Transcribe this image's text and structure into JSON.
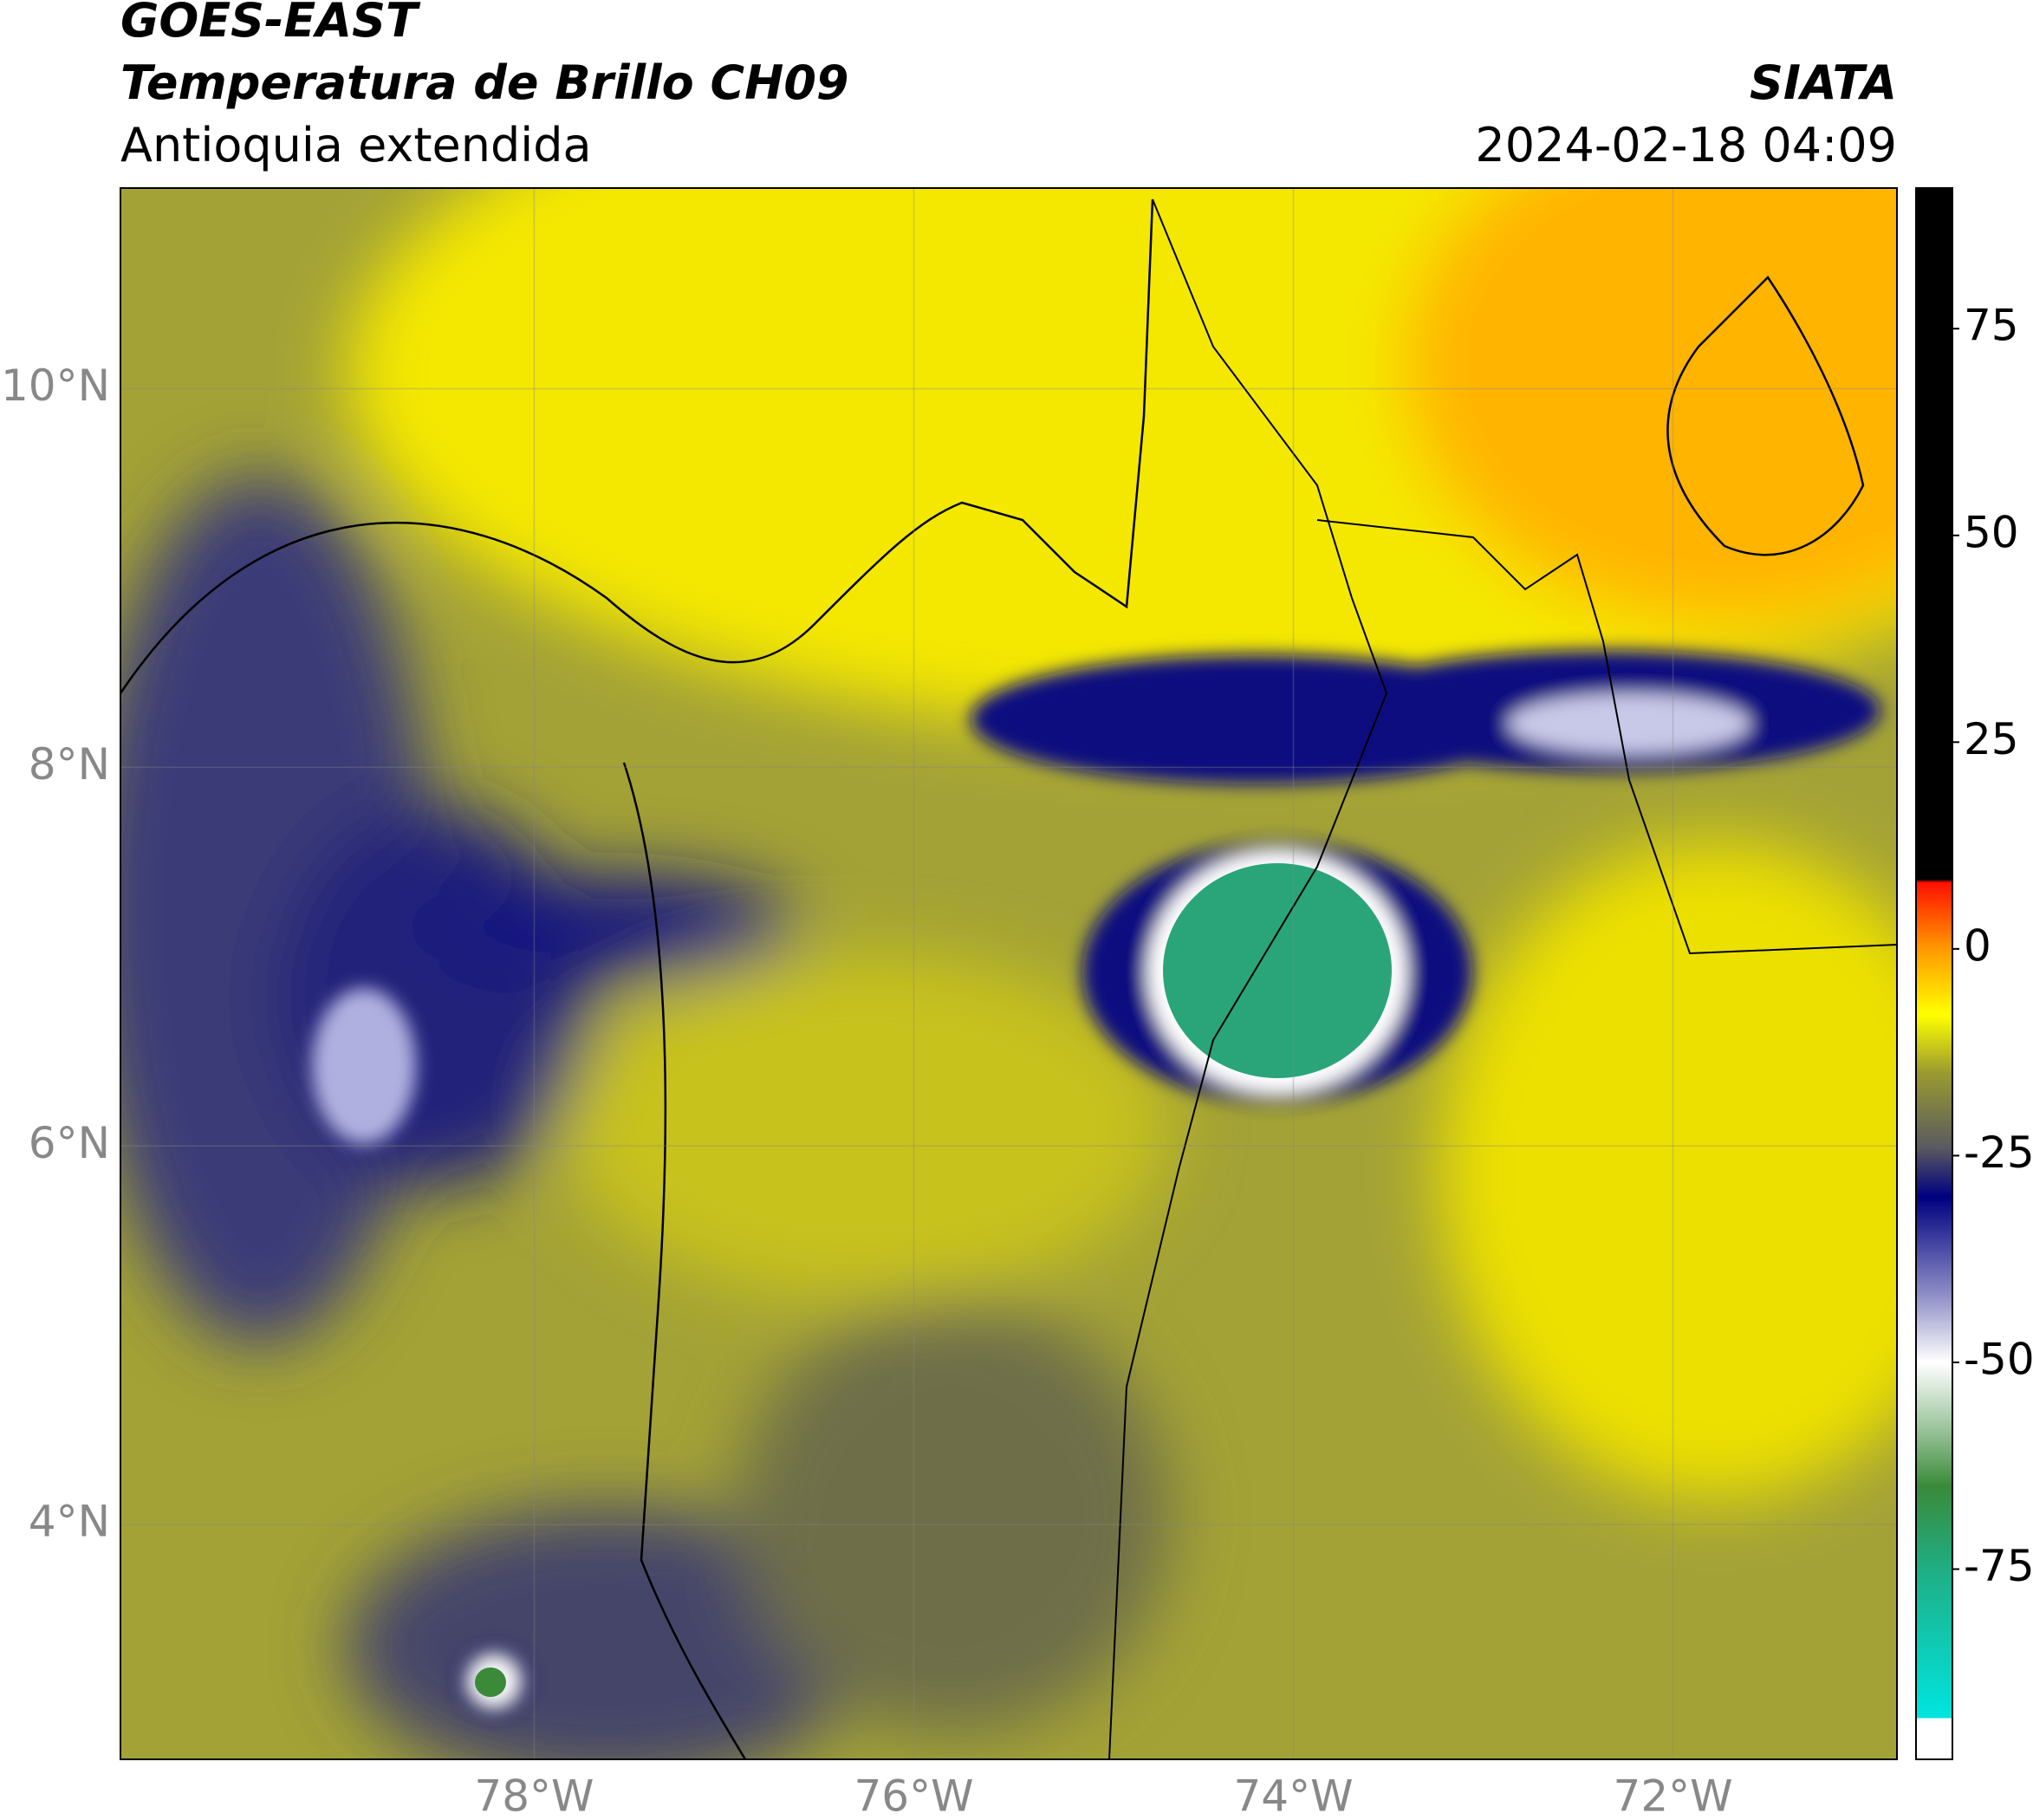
{
  "header": {
    "title": "GOES-EAST",
    "subtitle": "Temperatura de Brillo CH09",
    "region": "Antioquia extendida",
    "source": "SIATA",
    "datetime": "2024-02-18 04:09"
  },
  "map": {
    "lonlim": [
      -80.18,
      -70.82
    ],
    "latlim": [
      2.76,
      11.06
    ],
    "lonticks": [
      {
        "value": -78,
        "label": "78°W"
      },
      {
        "value": -76,
        "label": "76°W"
      },
      {
        "value": -74,
        "label": "74°W"
      },
      {
        "value": -72,
        "label": "72°W"
      }
    ],
    "latticks": [
      {
        "value": 4,
        "label": "4°N"
      },
      {
        "value": 6,
        "label": "6°N"
      },
      {
        "value": 8,
        "label": "8°N"
      },
      {
        "value": 10,
        "label": "10°N"
      }
    ],
    "grid": true
  },
  "colorbar": {
    "lim": [
      -98,
      92
    ],
    "ticks": [
      -75,
      -50,
      -25,
      0,
      25,
      50,
      75
    ],
    "stops": [
      {
        "value": -98,
        "color": "#ffffff"
      },
      {
        "value": -93,
        "color": "#ffffff"
      },
      {
        "value": -93,
        "color": "#00e5e0"
      },
      {
        "value": -75,
        "color": "#1fae84"
      },
      {
        "value": -65,
        "color": "#3a8a3a"
      },
      {
        "value": -58,
        "color": "#9cc49c"
      },
      {
        "value": -50,
        "color": "#ffffff"
      },
      {
        "value": -42,
        "color": "#9090c8"
      },
      {
        "value": -30,
        "color": "#000080"
      },
      {
        "value": -24,
        "color": "#5a5a60"
      },
      {
        "value": -15,
        "color": "#9a9a30"
      },
      {
        "value": -8,
        "color": "#ffff00"
      },
      {
        "value": 0,
        "color": "#ff9900"
      },
      {
        "value": 8,
        "color": "#ff1000"
      },
      {
        "value": 8.4,
        "color": "#000000"
      },
      {
        "value": 92,
        "color": "#000000"
      }
    ]
  }
}
